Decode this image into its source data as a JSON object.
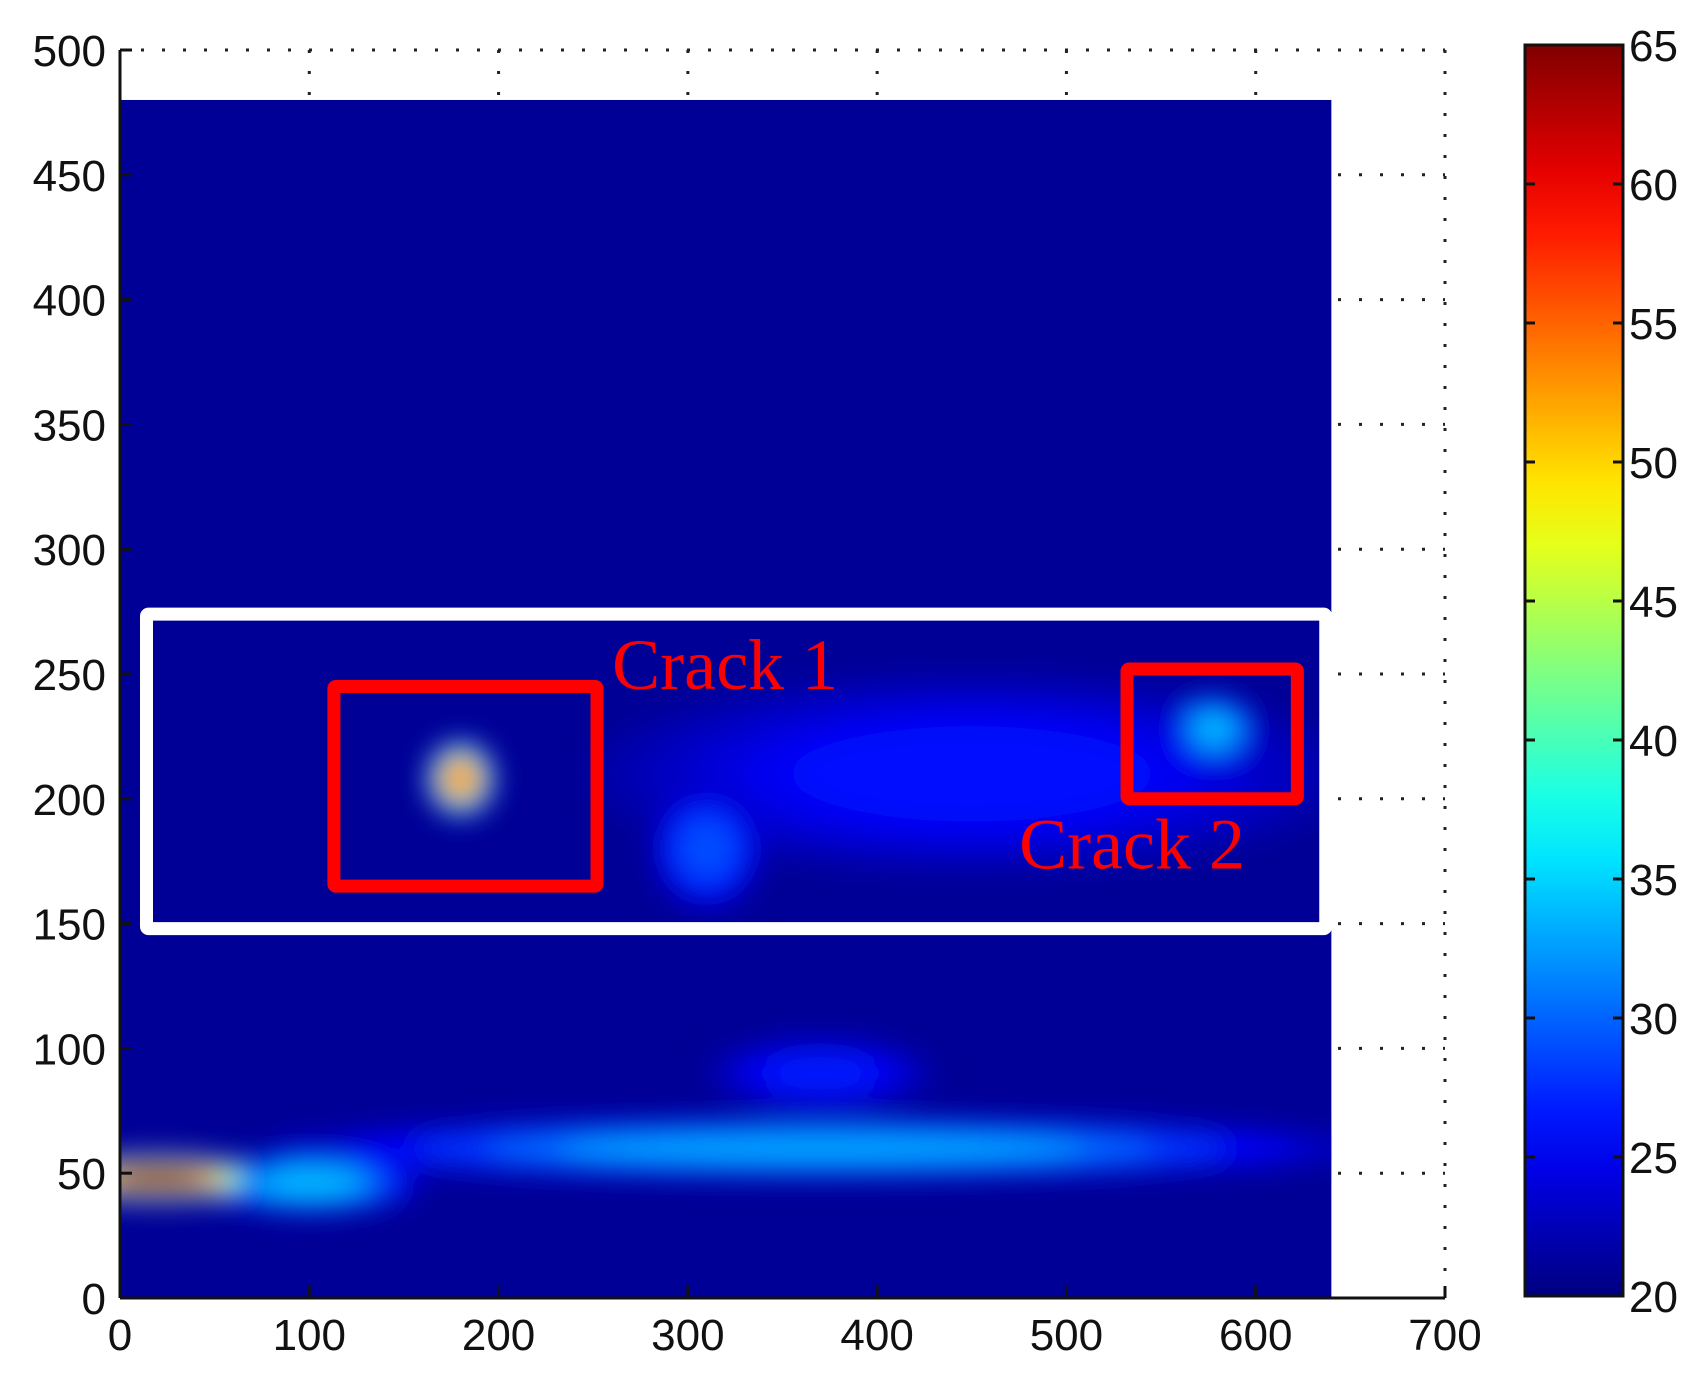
{
  "chart_data": {
    "type": "heatmap",
    "title": "",
    "xlabel": "",
    "ylabel": "",
    "xlim": [
      0,
      700
    ],
    "ylim": [
      0,
      500
    ],
    "xticks": [
      0,
      100,
      200,
      300,
      400,
      500,
      600,
      700
    ],
    "yticks": [
      0,
      50,
      100,
      150,
      200,
      250,
      300,
      350,
      400,
      450,
      500
    ],
    "grid": true,
    "image_extent": {
      "x": [
        0,
        640
      ],
      "y": [
        0,
        480
      ]
    },
    "colorscale": "jet",
    "colorbar": {
      "range": [
        20,
        65
      ],
      "ticks": [
        20,
        25,
        30,
        35,
        40,
        45,
        50,
        55,
        60,
        65
      ]
    },
    "background_value": 21,
    "hotspots": [
      {
        "x": 20,
        "y": 48,
        "rx": 55,
        "ry": 9,
        "value": 65
      },
      {
        "x": 100,
        "y": 46,
        "rx": 60,
        "ry": 12,
        "value": 34
      },
      {
        "x": 370,
        "y": 60,
        "rx": 290,
        "ry": 12,
        "value": 33
      },
      {
        "x": 370,
        "y": 90,
        "rx": 60,
        "ry": 14,
        "value": 27
      },
      {
        "x": 180,
        "y": 208,
        "rx": 18,
        "ry": 15,
        "value": 55
      },
      {
        "x": 578,
        "y": 228,
        "rx": 22,
        "ry": 14,
        "value": 34
      },
      {
        "x": 310,
        "y": 180,
        "rx": 30,
        "ry": 25,
        "value": 29
      },
      {
        "x": 450,
        "y": 210,
        "rx": 200,
        "ry": 40,
        "value": 26
      }
    ],
    "annotations": [
      {
        "text": "Crack 1",
        "x": 260,
        "y": 244,
        "color": "#ff0000"
      },
      {
        "text": "Crack 2",
        "x": 475,
        "y": 172,
        "color": "#ff0000"
      }
    ],
    "regions": [
      {
        "name": "crack-1-box",
        "x": [
          113,
          252
        ],
        "y": [
          165,
          245
        ],
        "color": "#ff0000"
      },
      {
        "name": "crack-2-box",
        "x": [
          532,
          622
        ],
        "y": [
          200,
          252
        ],
        "color": "#ff0000"
      },
      {
        "name": "region-box",
        "x": [
          14,
          637
        ],
        "y": [
          148,
          274
        ],
        "color": "#ffffff"
      }
    ]
  }
}
